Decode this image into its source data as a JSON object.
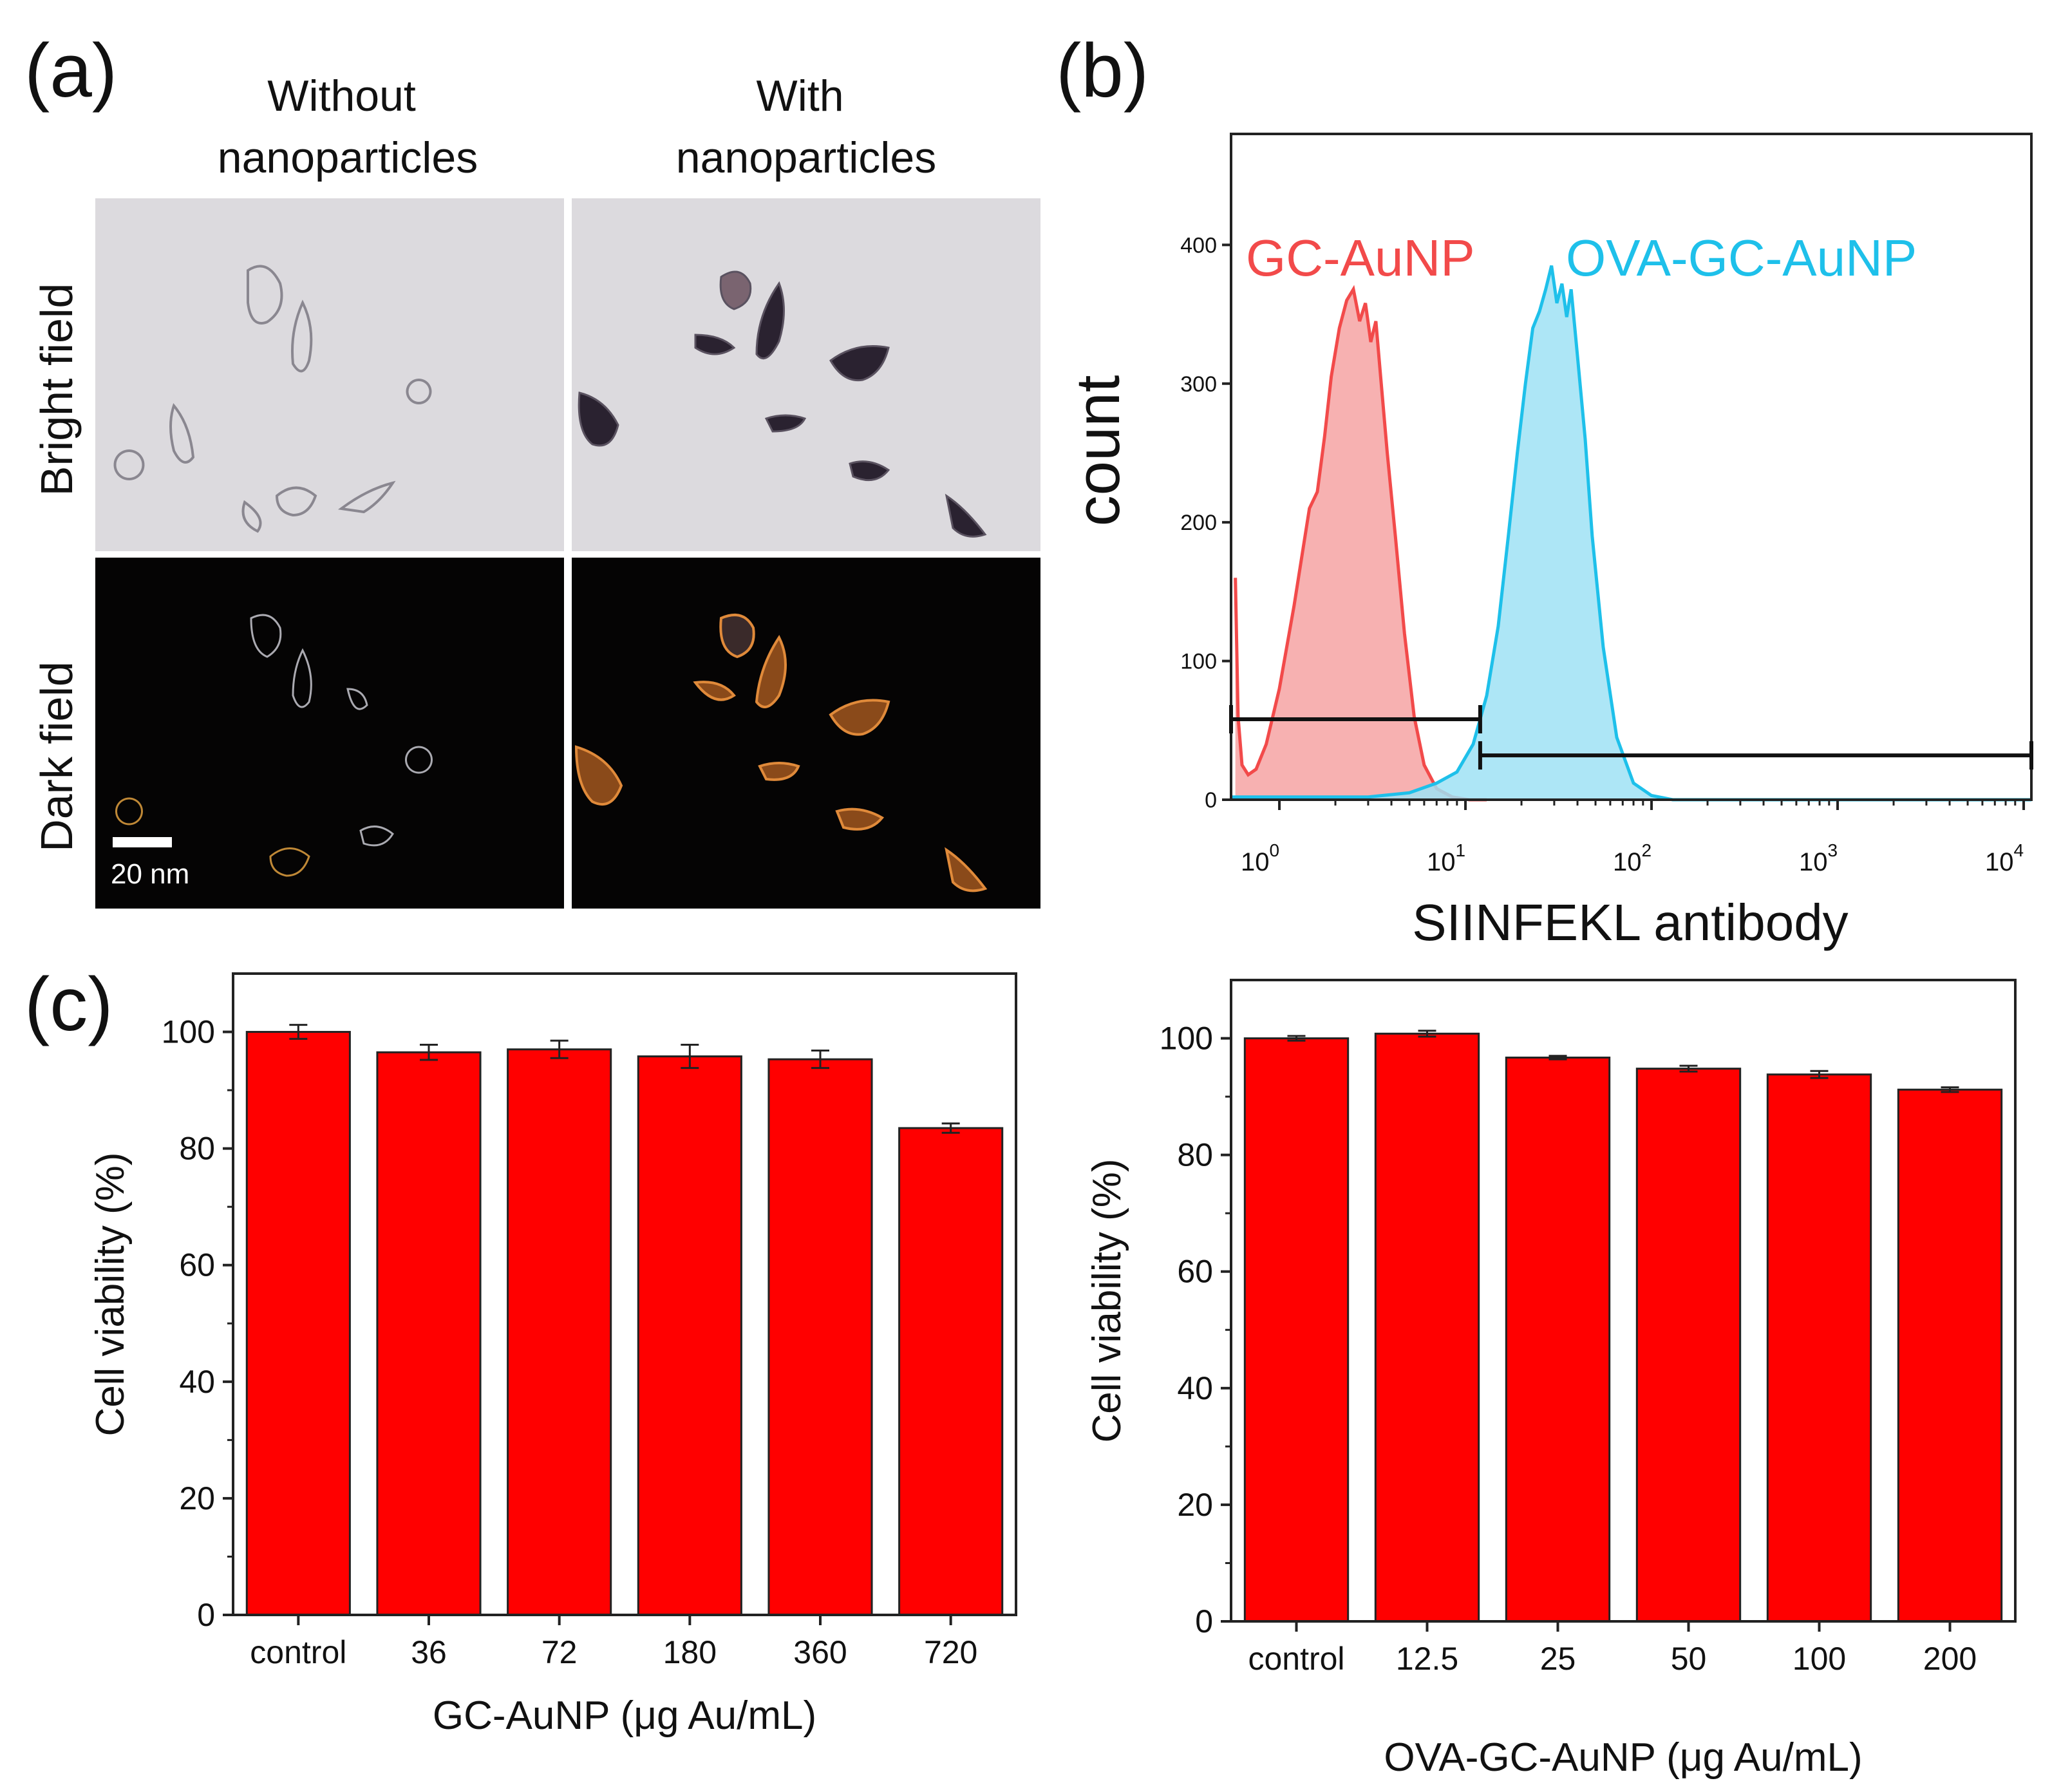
{
  "figure": {
    "panel_labels": {
      "a": "(a)",
      "b": "(b)",
      "c": "(c)"
    }
  },
  "panel_a": {
    "col_headers": [
      [
        "Without",
        "nanoparticles"
      ],
      [
        "With",
        "nanoparticles"
      ]
    ],
    "row_labels": [
      "Bright field",
      "Dark field"
    ],
    "scale_bar_label": "20 nm",
    "colors": {
      "bright_bg": "#dcdade",
      "dark_bg": "#050404",
      "cell_edge": "#8a8790",
      "np_cell": "#2a2230",
      "dark_cell": "#c8c8d0",
      "np_dark_cell": "#e08a3a"
    }
  },
  "chart_data": [
    {
      "type": "area",
      "title": "",
      "xlabel": "SIINFEKL antibody",
      "ylabel": "count",
      "xscale": "log",
      "xlim": [
        0.55,
        11000
      ],
      "ylim": [
        0,
        480
      ],
      "x_ticks": [
        {
          "base": "10",
          "exp": "0",
          "value": 1
        },
        {
          "base": "10",
          "exp": "1",
          "value": 10
        },
        {
          "base": "10",
          "exp": "2",
          "value": 100
        },
        {
          "base": "10",
          "exp": "3",
          "value": 1000
        },
        {
          "base": "10",
          "exp": "4",
          "value": 10000
        }
      ],
      "y_ticks": [
        "0",
        "100",
        "200",
        "300",
        "400"
      ],
      "series": [
        {
          "name": "GC-AuNP",
          "color": "#f24a4a",
          "fill": "#f6a3a3",
          "x": [
            0.58,
            0.6,
            0.63,
            0.68,
            0.75,
            0.85,
            1.0,
            1.2,
            1.45,
            1.6,
            1.75,
            1.9,
            2.1,
            2.3,
            2.5,
            2.7,
            2.9,
            3.1,
            3.3,
            3.5,
            3.8,
            4.2,
            4.7,
            5.3,
            6.0,
            7.0,
            8.5,
            10.5,
            13
          ],
          "y": [
            160,
            60,
            25,
            18,
            22,
            40,
            80,
            140,
            210,
            222,
            262,
            305,
            340,
            360,
            368,
            345,
            358,
            330,
            345,
            305,
            250,
            190,
            120,
            60,
            25,
            8,
            2,
            0,
            0
          ]
        },
        {
          "name": "OVA-GC-AuNP",
          "color": "#1ec0ea",
          "fill": "#9fe2f5",
          "x": [
            0.55,
            3,
            5,
            7,
            9,
            11,
            13,
            15,
            17,
            19,
            21,
            23,
            25,
            27,
            29,
            31,
            33,
            35,
            37,
            40,
            44,
            48,
            55,
            65,
            80,
            100,
            130,
            160,
            11000
          ],
          "y": [
            2,
            2,
            5,
            12,
            20,
            40,
            75,
            125,
            190,
            250,
            300,
            340,
            352,
            368,
            385,
            358,
            372,
            348,
            368,
            320,
            260,
            190,
            110,
            45,
            12,
            3,
            0,
            0,
            0
          ]
        }
      ],
      "gates": [
        {
          "name": "GC-AuNP gate",
          "from": 0.55,
          "to": 12,
          "y": 58
        },
        {
          "name": "OVA-GC-AuNP gate",
          "from": 12,
          "to": 11000,
          "y": 32
        }
      ]
    },
    {
      "type": "bar",
      "title": "",
      "xlabel": "GC-AuNP (μg Au/mL)",
      "ylabel": "Cell viability (%)",
      "ylim": [
        0,
        110
      ],
      "y_ticks": [
        "0",
        "20",
        "40",
        "60",
        "80",
        "100"
      ],
      "categories": [
        "control",
        "36",
        "72",
        "180",
        "360",
        "720"
      ],
      "values": [
        100,
        96.5,
        97,
        95.8,
        95.3,
        83.5
      ],
      "errors": [
        1.2,
        1.3,
        1.5,
        2.0,
        1.5,
        0.8
      ],
      "color": "#ff0000"
    },
    {
      "type": "bar",
      "title": "",
      "xlabel": "OVA-GC-AuNP (μg Au/mL)",
      "ylabel": "Cell viability (%)",
      "ylim": [
        0,
        110
      ],
      "y_ticks": [
        "0",
        "20",
        "40",
        "60",
        "80",
        "100"
      ],
      "categories": [
        "control",
        "12.5",
        "25",
        "50",
        "100",
        "200"
      ],
      "values": [
        100,
        100.8,
        96.7,
        94.8,
        93.8,
        91.2
      ],
      "errors": [
        0.4,
        0.5,
        0.3,
        0.5,
        0.6,
        0.4
      ],
      "color": "#ff0000"
    }
  ]
}
